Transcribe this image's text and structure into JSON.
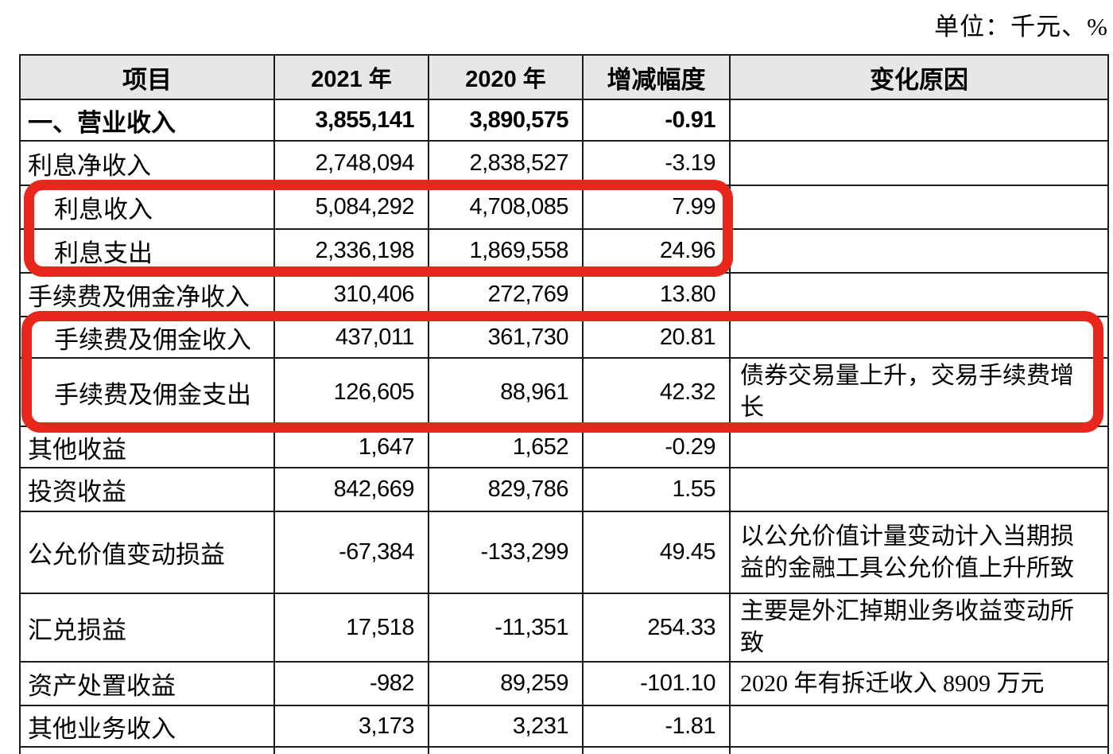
{
  "unit_note": "单位：千元、%",
  "table": {
    "headers": [
      "项目",
      "2021 年",
      "2020 年",
      "增减幅度",
      "变化原因"
    ],
    "rows": [
      {
        "item": "一、营业收入",
        "y2021": "3,855,141",
        "y2020": "3,890,575",
        "change": "-0.91",
        "reason": "",
        "bold": true,
        "indent": false
      },
      {
        "item": "利息净收入",
        "y2021": "2,748,094",
        "y2020": "2,838,527",
        "change": "-3.19",
        "reason": "",
        "bold": false,
        "indent": false
      },
      {
        "item": "利息收入",
        "y2021": "5,084,292",
        "y2020": "4,708,085",
        "change": "7.99",
        "reason": "",
        "bold": false,
        "indent": true
      },
      {
        "item": "利息支出",
        "y2021": "2,336,198",
        "y2020": "1,869,558",
        "change": "24.96",
        "reason": "",
        "bold": false,
        "indent": true
      },
      {
        "item": "手续费及佣金净收入",
        "y2021": "310,406",
        "y2020": "272,769",
        "change": "13.80",
        "reason": "",
        "bold": false,
        "indent": false
      },
      {
        "item": "手续费及佣金收入",
        "y2021": "437,011",
        "y2020": "361,730",
        "change": "20.81",
        "reason": "",
        "bold": false,
        "indent": true
      },
      {
        "item": "手续费及佣金支出",
        "y2021": "126,605",
        "y2020": "88,961",
        "change": "42.32",
        "reason": "债券交易量上升，交易手续费增长",
        "bold": false,
        "indent": true
      },
      {
        "item": "其他收益",
        "y2021": "1,647",
        "y2020": "1,652",
        "change": "-0.29",
        "reason": "",
        "bold": false,
        "indent": false
      },
      {
        "item": "投资收益",
        "y2021": "842,669",
        "y2020": "829,786",
        "change": "1.55",
        "reason": "",
        "bold": false,
        "indent": false
      },
      {
        "item": "公允价值变动损益",
        "y2021": "-67,384",
        "y2020": "-133,299",
        "change": "49.45",
        "reason": "以公允价值计量变动计入当期损益的金融工具公允价值上升所致",
        "bold": false,
        "indent": false
      },
      {
        "item": "汇兑损益",
        "y2021": "17,518",
        "y2020": "-11,351",
        "change": "254.33",
        "reason": "主要是外汇掉期业务收益变动所致",
        "bold": false,
        "indent": false
      },
      {
        "item": "资产处置收益",
        "y2021": "-982",
        "y2020": "89,259",
        "change": "-101.10",
        "reason": "2020 年有拆迁收入 8909 万元",
        "bold": false,
        "indent": false
      },
      {
        "item": "其他业务收入",
        "y2021": "3,173",
        "y2020": "3,231",
        "change": "-1.81",
        "reason": "",
        "bold": false,
        "indent": false
      }
    ]
  },
  "annotations": {
    "color": "#e8261c",
    "boxes": [
      {
        "name": "highlight-interest-income-expense-rows",
        "covers": "利息收入、利息支出"
      },
      {
        "name": "highlight-fee-commission-income-expense-rows",
        "covers": "手续费及佣金收入、手续费及佣金支出"
      }
    ]
  }
}
